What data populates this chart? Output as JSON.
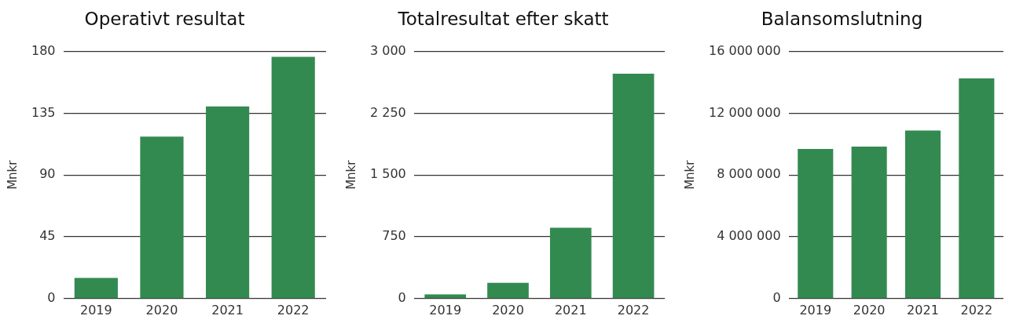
{
  "chart_data": [
    {
      "type": "bar",
      "title": "Operativt resultat",
      "ylabel": "Mnkr",
      "categories": [
        "2019",
        "2020",
        "2021",
        "2022"
      ],
      "values": [
        15,
        118,
        140,
        176
      ],
      "color": "#338a50",
      "ylim": [
        0,
        180
      ],
      "yticks": [
        0,
        45,
        90,
        135,
        180
      ],
      "grid": "y"
    },
    {
      "type": "bar",
      "title": "Totalresultat efter skatt",
      "ylabel": "Mnkr",
      "categories": [
        "2019",
        "2020",
        "2021",
        "2022"
      ],
      "values": [
        50,
        190,
        860,
        2730
      ],
      "color": "#338a50",
      "ylim": [
        0,
        3000
      ],
      "yticks": [
        0,
        {
          "value": 750,
          "label": "750"
        },
        {
          "value": 1500,
          "label": "1 500"
        },
        {
          "value": 2250,
          "label": "2 250"
        },
        {
          "value": 3000,
          "label": "3 000"
        }
      ],
      "grid": "y"
    },
    {
      "type": "bar",
      "title": "Balansomslutning",
      "ylabel": "Mnkr",
      "categories": [
        "2019",
        "2020",
        "2021",
        "2022"
      ],
      "values": [
        9690000,
        9840000,
        10880000,
        14260000
      ],
      "color": "#338a50",
      "ylim": [
        0,
        16000000
      ],
      "yticks": [
        0,
        {
          "value": 4000000,
          "label": "4 000 000"
        },
        {
          "value": 8000000,
          "label": "8 000 000"
        },
        {
          "value": 12000000,
          "label": "12 000 000"
        },
        {
          "value": 16000000,
          "label": "16 000 000"
        }
      ],
      "grid": "y"
    }
  ]
}
